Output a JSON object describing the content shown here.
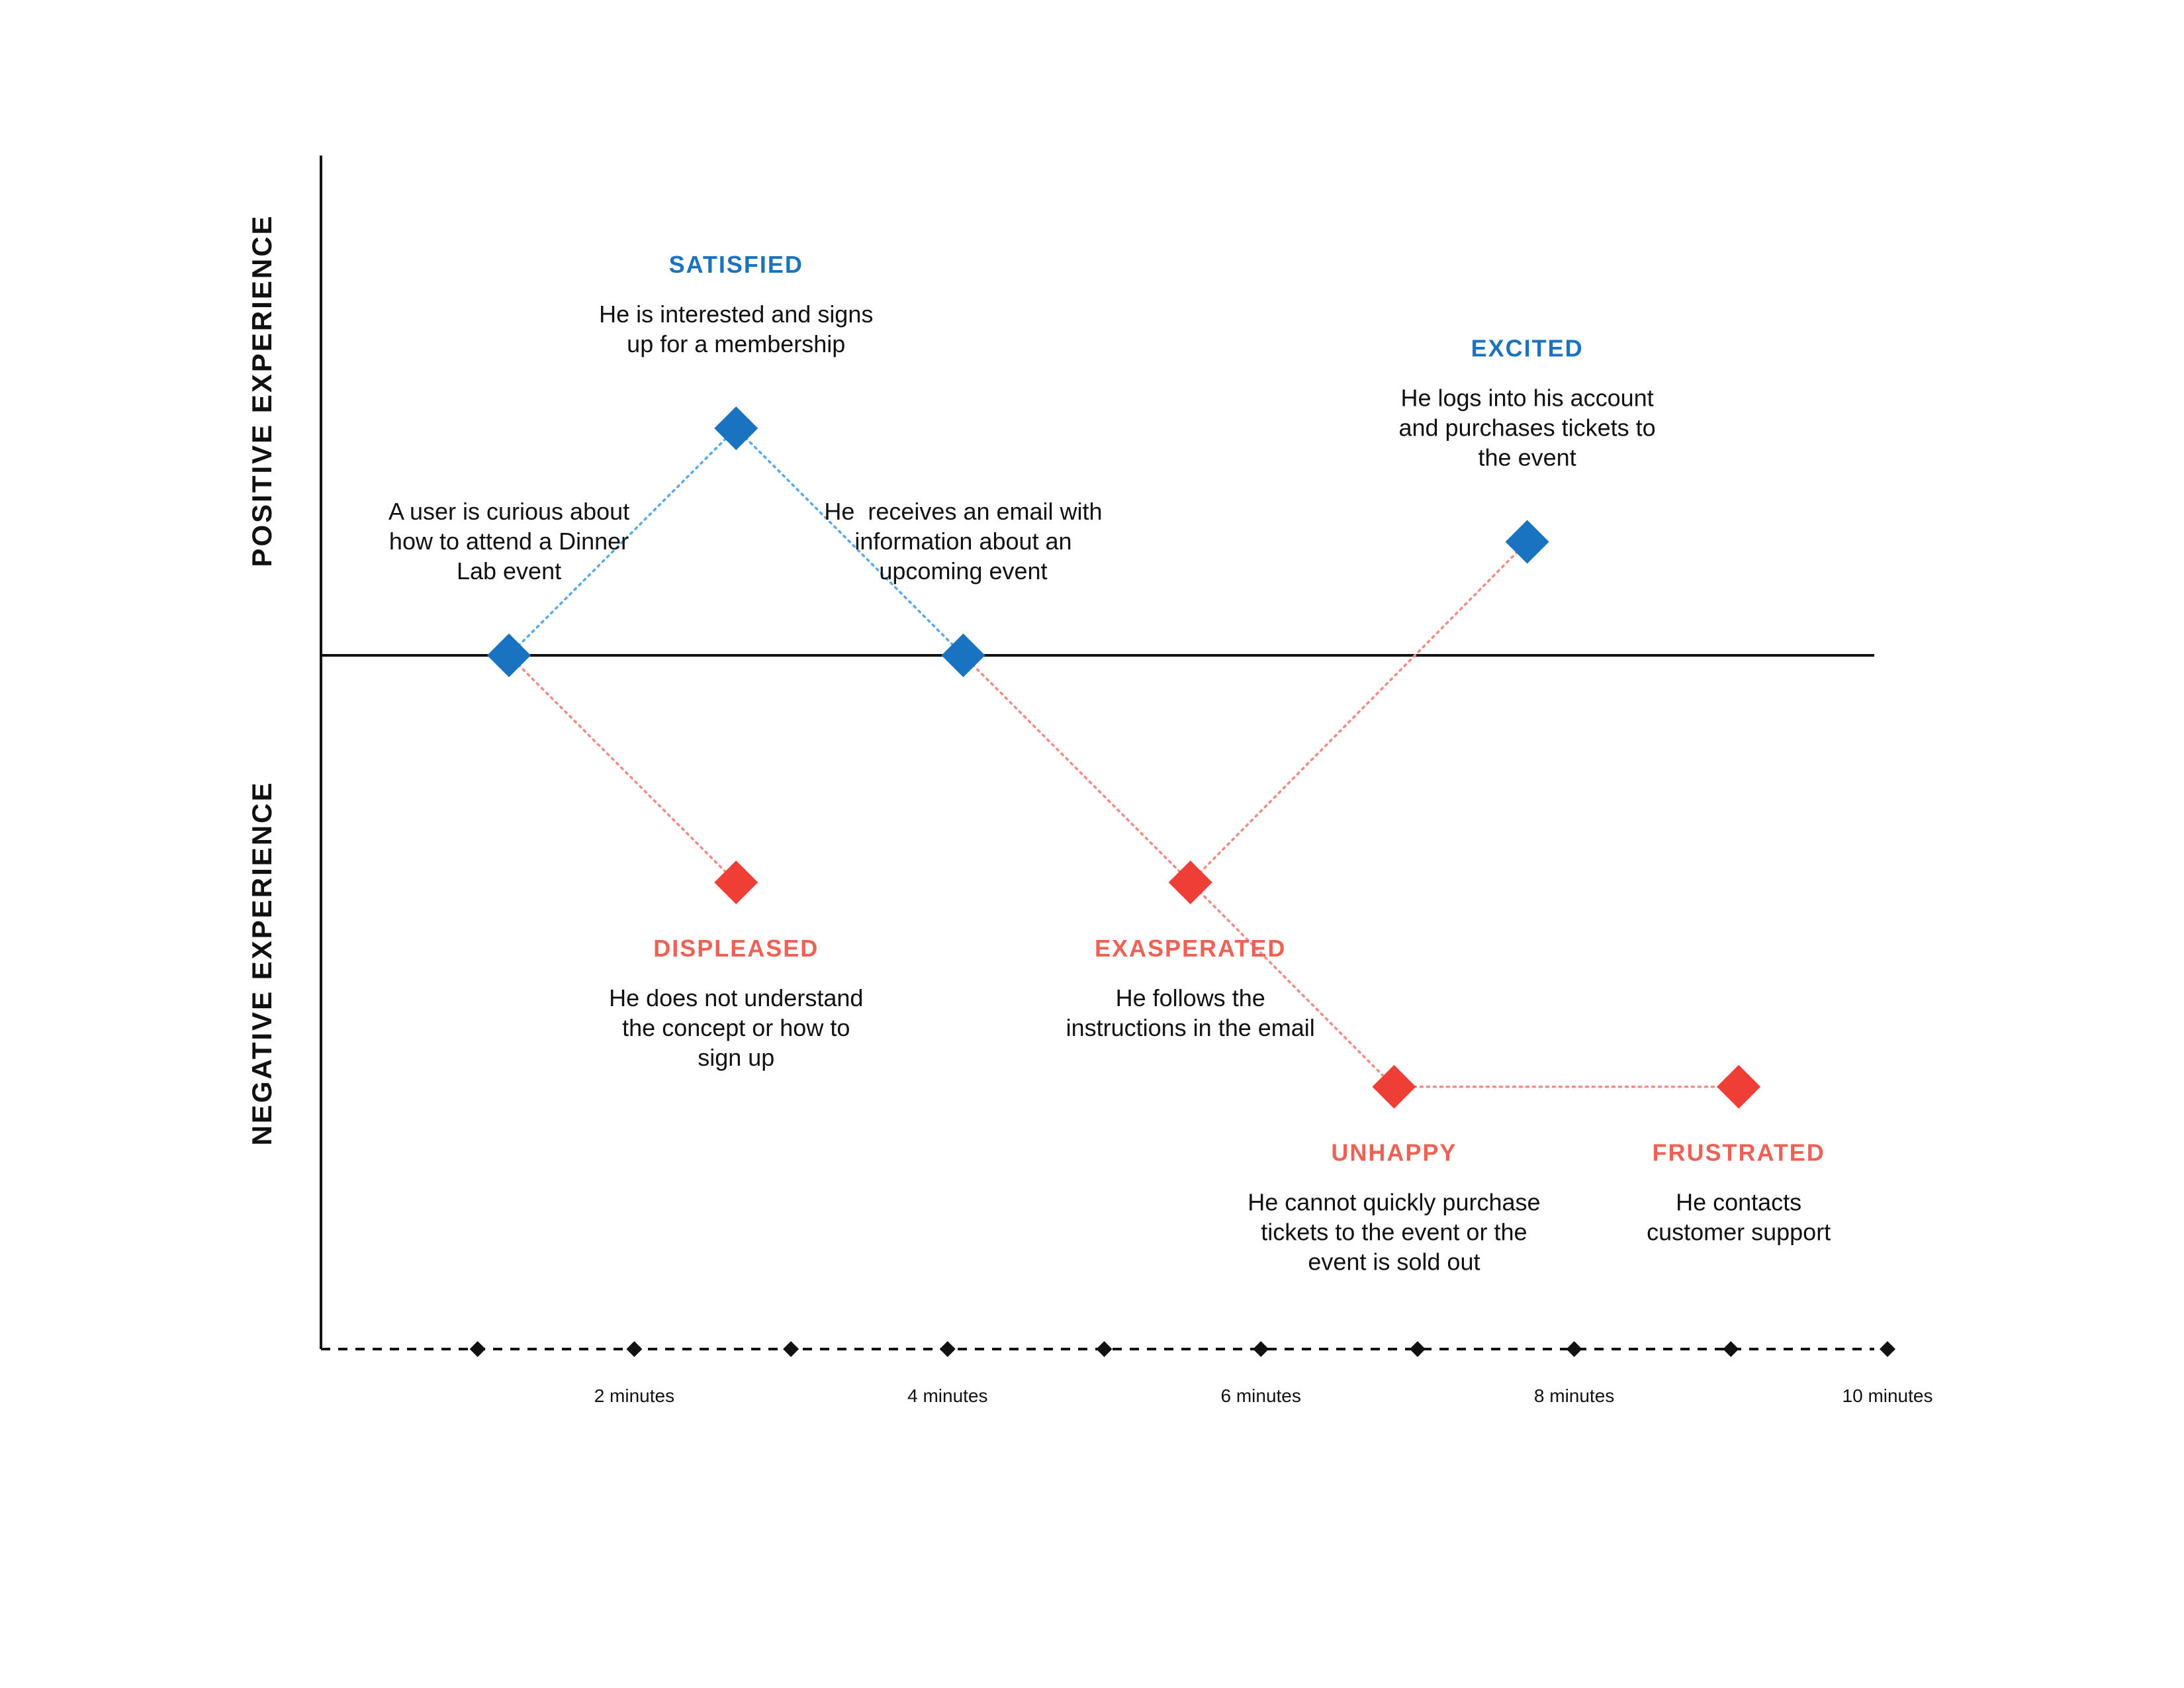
{
  "axes": {
    "positive_label": "POSITIVE EXPERIENCE",
    "negative_label": "NEGATIVE EXPERIENCE"
  },
  "timeline": {
    "tick_count": 10,
    "tick_labels": [
      {
        "tick": 2,
        "text": "2 minutes"
      },
      {
        "tick": 4,
        "text": "4 minutes"
      },
      {
        "tick": 6,
        "text": "6 minutes"
      },
      {
        "tick": 8,
        "text": "8 minutes"
      },
      {
        "tick": 10,
        "text": "10 minutes"
      }
    ]
  },
  "colors": {
    "positive": "#1a73c0",
    "negative": "#ef3e36",
    "positive_label": "#1a73c0",
    "negative_label": "#ef6155",
    "positive_link": "#5aa9e6",
    "negative_link": "#f38a84",
    "axis": "#111111"
  },
  "points": [
    {
      "id": "start",
      "t": 1.2,
      "level": 0,
      "tone": "positive",
      "label": "",
      "lines": [
        "A user is curious about",
        "how to attend a Dinner",
        "Lab event"
      ],
      "text_pos": "above"
    },
    {
      "id": "satisfied",
      "t": 2.65,
      "level": 1,
      "tone": "positive",
      "label": "SATISFIED",
      "lines": [
        "He is interested and signs",
        "up for a membership"
      ],
      "text_pos": "above"
    },
    {
      "id": "displeased",
      "t": 2.65,
      "level": -1,
      "tone": "negative",
      "label": "DISPLEASED",
      "lines": [
        "He does not understand",
        "the concept or how to",
        "sign up"
      ],
      "text_pos": "below"
    },
    {
      "id": "email",
      "t": 4.1,
      "level": 0,
      "tone": "positive",
      "label": "",
      "lines": [
        "He  receives an email with",
        "information about an",
        "upcoming event"
      ],
      "text_pos": "above"
    },
    {
      "id": "exasperated",
      "t": 5.55,
      "level": -1,
      "tone": "negative",
      "label": "EXASPERATED",
      "lines": [
        "He follows the",
        "instructions in the email"
      ],
      "text_pos": "below"
    },
    {
      "id": "excited",
      "t": 7.7,
      "level": 0.5,
      "tone": "positive",
      "label": "EXCITED",
      "lines": [
        "He logs into his account",
        "and purchases tickets to",
        "the event"
      ],
      "text_pos": "above"
    },
    {
      "id": "unhappy",
      "t": 6.85,
      "level": -1.9,
      "tone": "negative",
      "label": "UNHAPPY",
      "lines": [
        "He cannot quickly purchase",
        "tickets to the event or the",
        "event is sold out"
      ],
      "text_pos": "below"
    },
    {
      "id": "frustrated",
      "t": 9.05,
      "level": -1.9,
      "tone": "negative",
      "label": "FRUSTRATED",
      "lines": [
        "He contacts",
        "customer support"
      ],
      "text_pos": "below"
    }
  ],
  "links": [
    {
      "from": "start",
      "to": "satisfied",
      "tone": "positive"
    },
    {
      "from": "satisfied",
      "to": "email",
      "tone": "positive"
    },
    {
      "from": "start",
      "to": "displeased",
      "tone": "negative"
    },
    {
      "from": "email",
      "to": "exasperated",
      "tone": "negative"
    },
    {
      "from": "exasperated",
      "to": "excited",
      "tone": "negative"
    },
    {
      "from": "exasperated",
      "to": "unhappy",
      "tone": "negative"
    },
    {
      "from": "unhappy",
      "to": "frustrated",
      "tone": "negative"
    }
  ]
}
